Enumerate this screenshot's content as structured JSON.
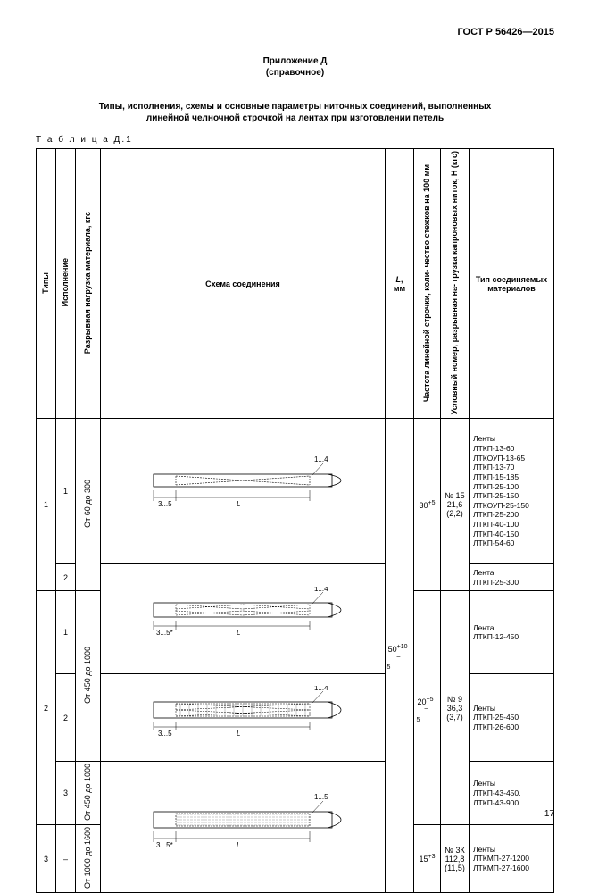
{
  "gost": "ГОСТ Р 56426—2015",
  "appendix_title": "Приложение Д",
  "appendix_sub": "(справочное)",
  "main_title_1": "Типы, исполнения, схемы и основные параметры ниточных соединений, выполненных",
  "main_title_2": "линейной челночной строчкой на лентах при изготовлении петель",
  "table_label": "Т а б л и ц а  Д.1",
  "headers": {
    "tip": "Типы",
    "isp": "Исполнение",
    "razryv": "Разрывная нагрузка материала, кгс",
    "schema": "Схема соединения",
    "l": "L, мм",
    "freq": "Частота линейной строчки, коли-\nчество стежков на 100 мм",
    "thread": "Условный номер, разрывная на-\nгрузка капроновых ниток, Н (кгс)",
    "mat": "Тип соединяемых материалов"
  },
  "l_value": "50",
  "l_sup": "+10",
  "l_sub": "–5",
  "rows": [
    {
      "tip": "1",
      "isp": "1",
      "razryv": "От 60 до 300",
      "freq": "30",
      "freq_sup": "+5",
      "thread_no": "№ 15",
      "thread_val": "21,6",
      "thread_kgs": "(2,2)",
      "materials": "Ленты\nЛТКП-13-60\nЛТКОУП-13-65\nЛТКП-13-70\nЛТКП-15-185\nЛТКП-25-100\nЛТКП-25-150\nЛТКОУП-25-150\nЛТКП-25-200\nЛТКП-40-100\nЛТКП-40-150\nЛТКП-54-60",
      "diag_type": "single_cross"
    },
    {
      "tip": "",
      "isp": "2",
      "razryv": "",
      "materials": "Лента\nЛТКП-25-300",
      "diag_type": "double_cross"
    },
    {
      "tip": "",
      "isp": "1",
      "razryv": "От 450 до 1000",
      "materials": "Лента\nЛТКП-12-450",
      "diag_type": "double_cross"
    },
    {
      "tip": "2",
      "isp": "2",
      "razryv": "",
      "freq": "20",
      "freq_sup": "+5",
      "freq_sub": "–5",
      "thread_no": "№ 9",
      "thread_val": "36,3",
      "thread_kgs": "(3,7)",
      "materials": "Ленты\nЛТКП-25-450\nЛТКП-26-600",
      "diag_type": "double_cross_shade"
    },
    {
      "tip": "",
      "isp": "3",
      "razryv": "От 450 до 1000",
      "materials": "Ленты\nЛТКП-43-450.\nЛТКП-43-900",
      "diag_type": "shade"
    },
    {
      "tip": "3",
      "isp": "–",
      "razryv": "От 1000 до 1600",
      "freq": "15",
      "freq_sup": "+3",
      "thread_no": "№ 3К",
      "thread_val": "112,8",
      "thread_kgs": "(11,5)",
      "materials": "Ленты\nЛТКМП-27-1200\nЛТКМП-27-1600",
      "diag_type": "shade"
    }
  ],
  "diag_labels": {
    "gap": "3...5",
    "gap_star": "3...5*",
    "width_min": "1...4",
    "width_15": "1...5",
    "length": "L"
  },
  "pagenum": "17"
}
